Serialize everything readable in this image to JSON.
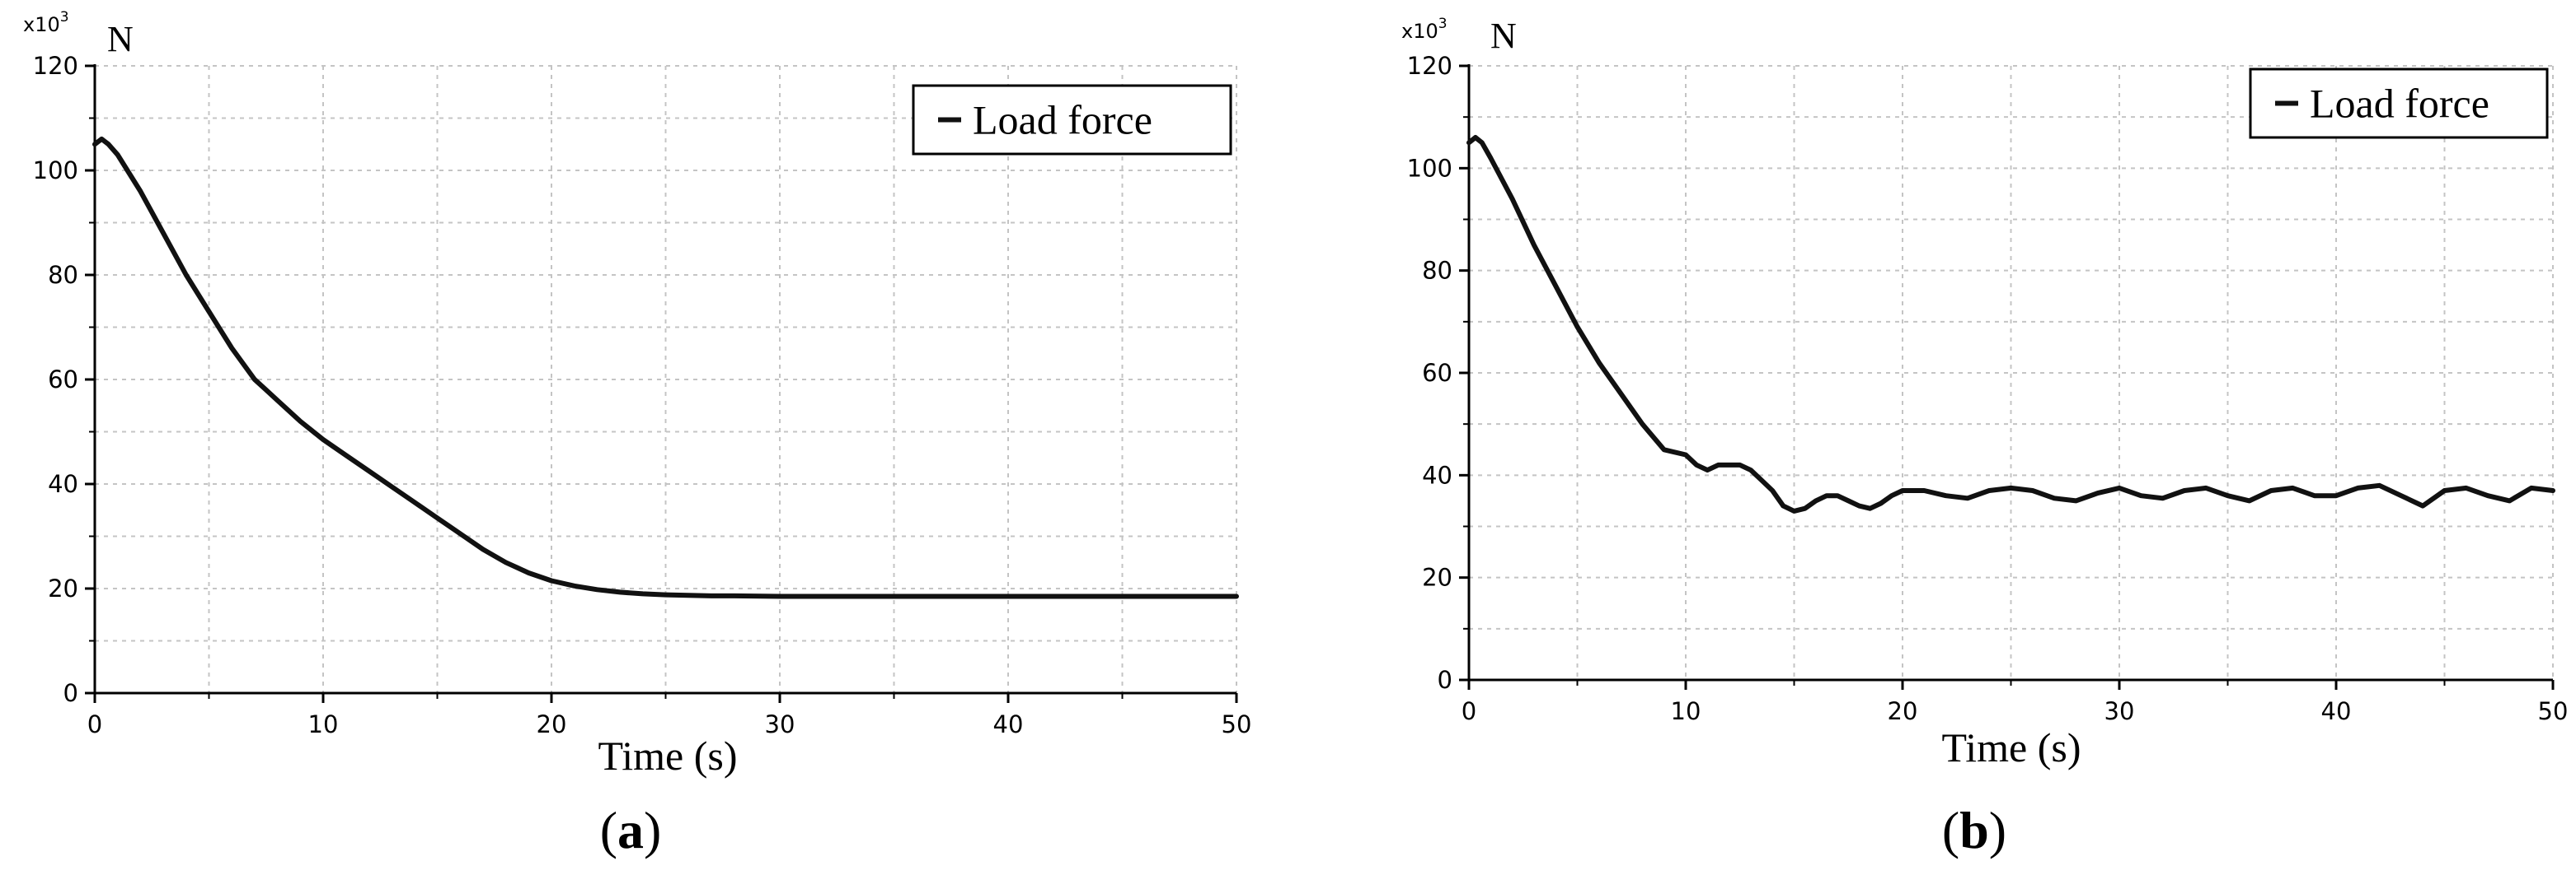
{
  "chart_data": [
    {
      "type": "line",
      "panel_label": "a",
      "unit_label": "N",
      "y_multiplier_base": "x10",
      "y_multiplier_exp": "3",
      "xlabel": "Time (s)",
      "xlim": [
        0,
        50
      ],
      "ylim": [
        0,
        120
      ],
      "xticks": [
        0,
        10,
        20,
        30,
        40,
        50
      ],
      "yticks": [
        0,
        20,
        40,
        60,
        80,
        100,
        120
      ],
      "grid": true,
      "legend_position": "top-right",
      "series": [
        {
          "name": "Load force",
          "color": "#111111",
          "x": [
            0,
            0.3,
            0.6,
            1,
            2,
            3,
            4,
            5,
            6,
            7,
            7.5,
            8,
            9,
            10,
            11,
            12,
            13,
            14,
            15,
            16,
            17,
            18,
            18.5,
            19,
            20,
            21,
            22,
            23,
            24,
            25,
            26,
            27,
            28,
            30,
            35,
            40,
            45,
            50
          ],
          "y": [
            105,
            106,
            105,
            103,
            96,
            88,
            80,
            73,
            66,
            60,
            58,
            56,
            52,
            48.5,
            45.5,
            42.5,
            39.5,
            36.5,
            33.5,
            30.5,
            27.5,
            25,
            24,
            23,
            21.5,
            20.5,
            19.8,
            19.3,
            19,
            18.8,
            18.7,
            18.6,
            18.6,
            18.5,
            18.5,
            18.5,
            18.5,
            18.5
          ]
        }
      ]
    },
    {
      "type": "line",
      "panel_label": "b",
      "unit_label": "N",
      "y_multiplier_base": "x10",
      "y_multiplier_exp": "3",
      "xlabel": "Time (s)",
      "xlim": [
        0,
        50
      ],
      "ylim": [
        0,
        120
      ],
      "xticks": [
        0,
        10,
        20,
        30,
        40,
        50
      ],
      "yticks": [
        0,
        20,
        40,
        60,
        80,
        100,
        120
      ],
      "grid": true,
      "legend_position": "top-right",
      "series": [
        {
          "name": "Load force",
          "color": "#111111",
          "x": [
            0,
            0.3,
            0.6,
            1,
            2,
            3,
            4,
            5,
            6,
            7,
            8,
            9,
            10,
            10.5,
            11,
            11.5,
            12,
            12.5,
            13,
            13.5,
            14,
            14.5,
            15,
            15.5,
            16,
            16.5,
            17,
            17.5,
            18,
            18.5,
            19,
            19.5,
            20,
            21,
            22,
            23,
            24,
            25,
            26,
            27,
            28,
            29,
            30,
            31,
            32,
            33,
            34,
            35,
            36,
            37,
            38,
            39,
            40,
            41,
            42,
            43,
            44,
            45,
            46,
            47,
            48,
            49,
            50
          ],
          "y": [
            105,
            106,
            105,
            102,
            94,
            85,
            77,
            69,
            62,
            56,
            50,
            45,
            44,
            42,
            41,
            42,
            42,
            42,
            41,
            39,
            37,
            34,
            33,
            33.5,
            35,
            36,
            36,
            35,
            34,
            33.5,
            34.5,
            36,
            37,
            37,
            36,
            35.5,
            37,
            37.5,
            37,
            35.5,
            35,
            36.5,
            37.5,
            36,
            35.5,
            37,
            37.5,
            36,
            35,
            37,
            37.5,
            36,
            36,
            37.5,
            38,
            36,
            34,
            37,
            37.5,
            36,
            35,
            37.5,
            37
          ]
        }
      ]
    }
  ]
}
